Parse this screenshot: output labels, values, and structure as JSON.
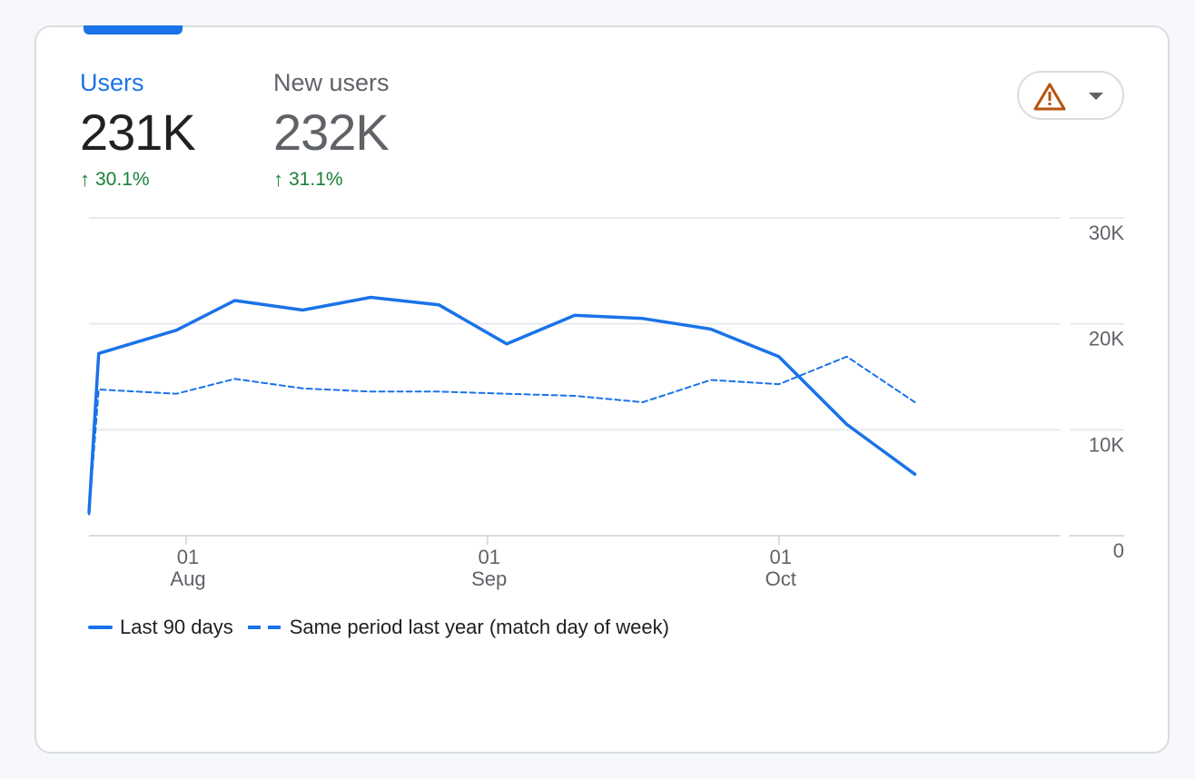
{
  "metrics": [
    {
      "label": "Users",
      "value": "231K",
      "change": "30.1%",
      "direction": "up",
      "active": true
    },
    {
      "label": "New users",
      "value": "232K",
      "change": "31.1%",
      "direction": "up",
      "active": false
    }
  ],
  "alert_button": {
    "icon": "warning-triangle-icon",
    "menu_icon": "dropdown-caret-icon",
    "icon_color": "#b5530f"
  },
  "colors": {
    "primary": "#1a73e8",
    "positive": "#188038",
    "grid": "#e8eaed",
    "text_muted": "#5f6368"
  },
  "chart_data": {
    "type": "line",
    "x_ticks": [
      {
        "date": "2023-08-01",
        "day": "01",
        "month": "Aug"
      },
      {
        "date": "2023-09-01",
        "day": "01",
        "month": "Sep"
      },
      {
        "date": "2023-10-01",
        "day": "01",
        "month": "Oct"
      }
    ],
    "y_ticks": [
      "30K",
      "20K",
      "10K",
      "0"
    ],
    "ylim": [
      0,
      30000
    ],
    "xlim": [
      "2023-07-22",
      "2023-10-30"
    ],
    "grid": true,
    "legend_position": "bottom-left",
    "series": [
      {
        "name": "Last 90 days",
        "style": "solid",
        "points": [
          [
            "2023-07-22",
            2200
          ],
          [
            "2023-07-23",
            17200
          ],
          [
            "2023-07-31",
            19400
          ],
          [
            "2023-08-06",
            22200
          ],
          [
            "2023-08-13",
            21300
          ],
          [
            "2023-08-20",
            22500
          ],
          [
            "2023-08-27",
            21800
          ],
          [
            "2023-09-03",
            18100
          ],
          [
            "2023-09-10",
            20800
          ],
          [
            "2023-09-17",
            20500
          ],
          [
            "2023-09-24",
            19500
          ],
          [
            "2023-10-01",
            16900
          ],
          [
            "2023-10-08",
            10500
          ],
          [
            "2023-10-15",
            5800
          ]
        ]
      },
      {
        "name": "Same period last year (match day of week)",
        "style": "dashed",
        "points": [
          [
            "2023-07-22",
            2000
          ],
          [
            "2023-07-23",
            13800
          ],
          [
            "2023-07-31",
            13400
          ],
          [
            "2023-08-06",
            14800
          ],
          [
            "2023-08-13",
            13900
          ],
          [
            "2023-08-20",
            13600
          ],
          [
            "2023-08-27",
            13600
          ],
          [
            "2023-09-03",
            13400
          ],
          [
            "2023-09-10",
            13200
          ],
          [
            "2023-09-17",
            12600
          ],
          [
            "2023-09-24",
            14700
          ],
          [
            "2023-10-01",
            14300
          ],
          [
            "2023-10-08",
            16900
          ],
          [
            "2023-10-15",
            12600
          ]
        ]
      }
    ]
  }
}
